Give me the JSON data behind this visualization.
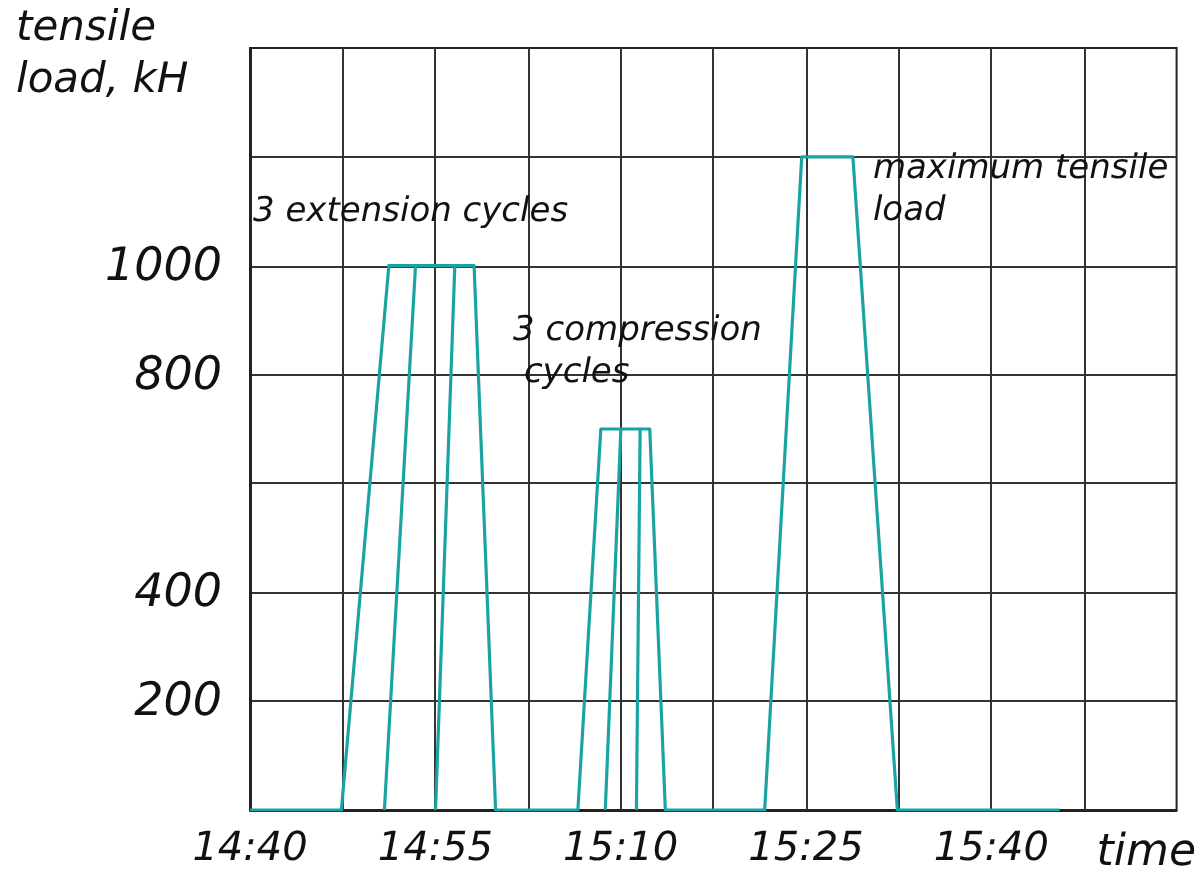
{
  "chart_data": {
    "type": "line",
    "xlabel": "time",
    "ylabel": "tensile load, kH",
    "xlim": [
      14.6667,
      15.9167
    ],
    "xticks": [
      {
        "value": 14.6667,
        "label": "14:40"
      },
      {
        "value": 14.7917,
        "label": null
      },
      {
        "value": 14.9167,
        "label": "14:55"
      },
      {
        "value": 15.0417,
        "label": null
      },
      {
        "value": 15.1667,
        "label": "15:10"
      },
      {
        "value": 15.2917,
        "label": null
      },
      {
        "value": 15.4167,
        "label": "15:25"
      },
      {
        "value": 15.5417,
        "label": null
      },
      {
        "value": 15.6667,
        "label": "15:40"
      },
      {
        "value": 15.7917,
        "label": null
      }
    ],
    "ylim": [
      0,
      1400
    ],
    "yticks": [
      200,
      400,
      {
        "value": 600,
        "label": null
      },
      800,
      1000,
      {
        "value": 1200,
        "label": null
      }
    ],
    "grid": true,
    "marker": "none",
    "line_style": "solid",
    "series": [
      {
        "color": "#1aa3a3",
        "x": [
          14.6667,
          14.79,
          14.854,
          14.969,
          14.998,
          15.109,
          15.14,
          15.206,
          15.227,
          15.361,
          15.411,
          15.48,
          15.54,
          15.759
        ],
        "values": [
          0,
          0,
          1000,
          1000,
          0,
          0,
          700,
          700,
          0,
          0,
          1200,
          1200,
          0,
          0
        ]
      },
      {
        "color": "#1aa3a3",
        "x": [
          14.848,
          14.89,
          14.9,
          14.917,
          14.943,
          14.95,
          15.146,
          15.167,
          15.17,
          15.188,
          15.193
        ],
        "values": [
          0,
          1000,
          null,
          0,
          1000,
          null,
          0,
          700,
          null,
          0,
          700
        ]
      }
    ],
    "annotations": [
      {
        "text": "3 extension cycles",
        "x": 14.9,
        "y": 1000
      },
      {
        "text": "3 compression cycles",
        "x": 15.17,
        "y": 700
      },
      {
        "text": "maximum tensile load",
        "x": 15.48,
        "y": 1200
      }
    ]
  }
}
